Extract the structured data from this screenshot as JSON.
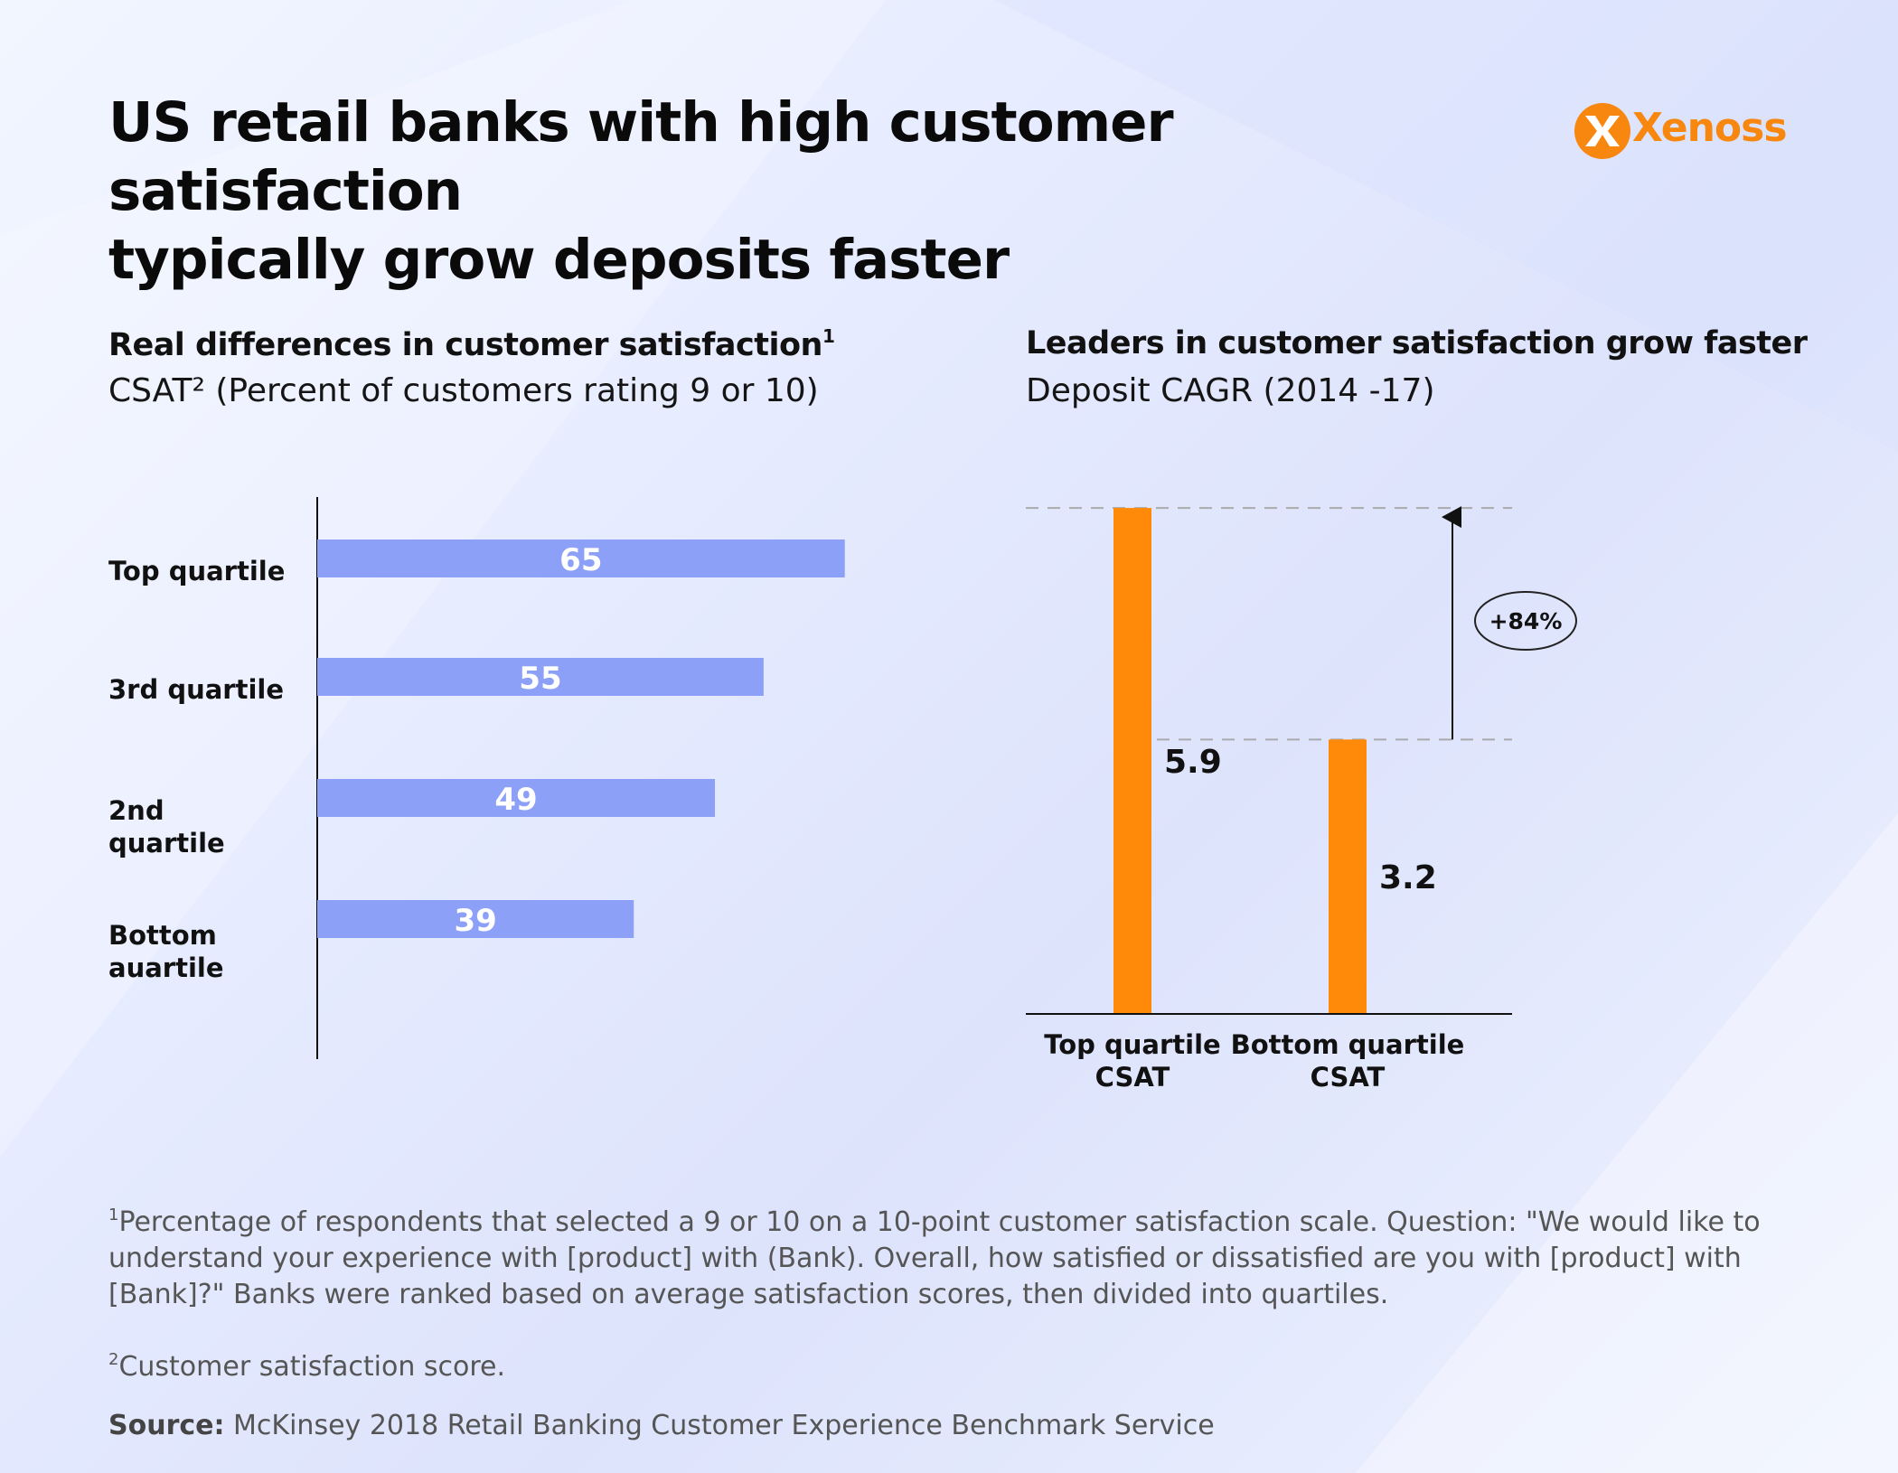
{
  "title_line1": "US retail banks with high customer satisfaction",
  "title_line2": "typically grow deposits faster",
  "logo": {
    "text": "Xenoss",
    "icon": "xenoss-logo-icon",
    "color": "#f7870f"
  },
  "left_panel": {
    "heading": "Real differences in customer satisfaction",
    "heading_sup": "1",
    "subheading": "CSAT² (Percent of customers rating 9 or 10)"
  },
  "right_panel": {
    "heading": "Leaders in customer satisfaction grow faster",
    "subheading": "Deposit CAGR (2014 -17)",
    "difference_label": "+84%"
  },
  "chart_data": [
    {
      "type": "bar",
      "orientation": "horizontal",
      "title": "Real differences in customer satisfaction",
      "subtitle": "CSAT² (Percent of customers rating 9 or 10)",
      "categories": [
        "Top quartile",
        "3rd quartile",
        "2nd quartile",
        "Bottom\nauartile"
      ],
      "values": [
        65,
        55,
        49,
        39
      ],
      "value_labels": [
        "65",
        "55",
        "49",
        "39"
      ],
      "xlim": [
        0,
        100
      ],
      "bar_color": "#8da0f7",
      "grid": false,
      "legend": "none"
    },
    {
      "type": "bar",
      "orientation": "vertical",
      "title": "Leaders in customer satisfaction grow faster",
      "subtitle": "Deposit CAGR (2014 -17)",
      "categories": [
        "Top quartile\nCSAT",
        "Bottom quartile\nCSAT"
      ],
      "values": [
        5.9,
        3.2
      ],
      "value_labels": [
        "5.9",
        "3.2"
      ],
      "ylim": [
        0,
        5.9
      ],
      "bar_color": "#ff8a0a",
      "annotation": "+84%",
      "grid": false,
      "legend": "none"
    }
  ],
  "footnotes": {
    "note1_mark": "1",
    "note1_line1": "Percentage of respondents that selected a 9 or 10 on a 10-point customer satisfaction scale. Question: \"We would like to",
    "note1_line2": "understand your experience with [product] with (Bank). Overall, how satisfied or dissatisfied are you with [product] with",
    "note1_line3": "[Bank]?\" Banks were ranked based on average satisfaction scores, then divided into quartiles.",
    "note2_mark": "2",
    "note2": "Customer satisfaction score.",
    "source_label": "Source:",
    "source_text": "McKinsey 2018 Retail Banking Customer Experience Benchmark Service"
  }
}
